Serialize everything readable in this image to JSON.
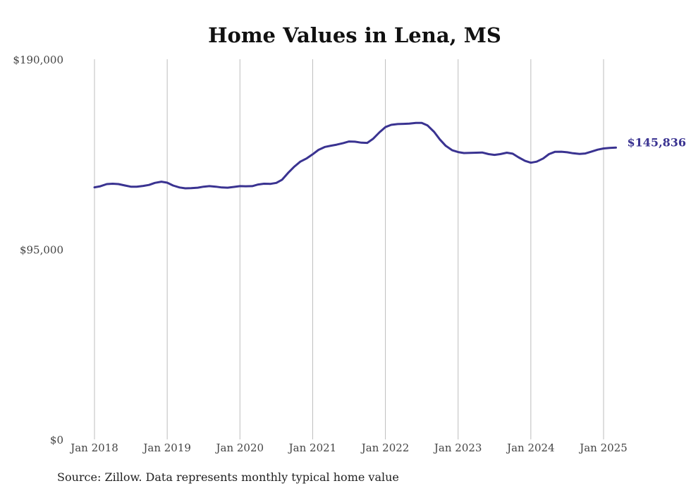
{
  "chart_data": {
    "type": "line",
    "title": "Home Values in Lena, MS",
    "xlabel": "",
    "ylabel": "",
    "ylim": [
      0,
      190000
    ],
    "y_ticks": [
      {
        "value": 0,
        "label": "$0"
      },
      {
        "value": 95000,
        "label": "$95,000"
      },
      {
        "value": 190000,
        "label": "$190,000"
      }
    ],
    "x_ticks": [
      {
        "value": 2018.0,
        "label": "Jan 2018"
      },
      {
        "value": 2019.0,
        "label": "Jan 2019"
      },
      {
        "value": 2020.0,
        "label": "Jan 2020"
      },
      {
        "value": 2021.0,
        "label": "Jan 2021"
      },
      {
        "value": 2022.0,
        "label": "Jan 2022"
      },
      {
        "value": 2023.0,
        "label": "Jan 2023"
      },
      {
        "value": 2024.0,
        "label": "Jan 2024"
      },
      {
        "value": 2025.0,
        "label": "Jan 2025"
      }
    ],
    "grid": {
      "vertical": true,
      "horizontal": false
    },
    "series": [
      {
        "color": "#3a3391",
        "end_label": "$145,836",
        "points": [
          [
            2018.0,
            126000
          ],
          [
            2018.08,
            126500
          ],
          [
            2018.17,
            127600
          ],
          [
            2018.25,
            127800
          ],
          [
            2018.33,
            127600
          ],
          [
            2018.42,
            126900
          ],
          [
            2018.5,
            126300
          ],
          [
            2018.58,
            126300
          ],
          [
            2018.67,
            126700
          ],
          [
            2018.75,
            127200
          ],
          [
            2018.83,
            128200
          ],
          [
            2018.92,
            128800
          ],
          [
            2019.0,
            128300
          ],
          [
            2019.08,
            126900
          ],
          [
            2019.17,
            125900
          ],
          [
            2019.25,
            125500
          ],
          [
            2019.33,
            125600
          ],
          [
            2019.42,
            125800
          ],
          [
            2019.5,
            126300
          ],
          [
            2019.58,
            126600
          ],
          [
            2019.67,
            126300
          ],
          [
            2019.75,
            125900
          ],
          [
            2019.83,
            125800
          ],
          [
            2019.92,
            126200
          ],
          [
            2020.0,
            126600
          ],
          [
            2020.08,
            126500
          ],
          [
            2020.17,
            126600
          ],
          [
            2020.25,
            127400
          ],
          [
            2020.33,
            127800
          ],
          [
            2020.42,
            127700
          ],
          [
            2020.5,
            128200
          ],
          [
            2020.58,
            129800
          ],
          [
            2020.67,
            133500
          ],
          [
            2020.75,
            136400
          ],
          [
            2020.83,
            138800
          ],
          [
            2020.92,
            140500
          ],
          [
            2021.0,
            142500
          ],
          [
            2021.08,
            144700
          ],
          [
            2021.17,
            146200
          ],
          [
            2021.25,
            146800
          ],
          [
            2021.33,
            147300
          ],
          [
            2021.42,
            148100
          ],
          [
            2021.5,
            148900
          ],
          [
            2021.58,
            148800
          ],
          [
            2021.67,
            148300
          ],
          [
            2021.75,
            148200
          ],
          [
            2021.83,
            150200
          ],
          [
            2021.92,
            153500
          ],
          [
            2022.0,
            156100
          ],
          [
            2022.08,
            157200
          ],
          [
            2022.17,
            157600
          ],
          [
            2022.25,
            157700
          ],
          [
            2022.33,
            157800
          ],
          [
            2022.42,
            158200
          ],
          [
            2022.5,
            158200
          ],
          [
            2022.58,
            156900
          ],
          [
            2022.67,
            153700
          ],
          [
            2022.75,
            149900
          ],
          [
            2022.83,
            146700
          ],
          [
            2022.92,
            144500
          ],
          [
            2023.0,
            143600
          ],
          [
            2023.08,
            143100
          ],
          [
            2023.17,
            143200
          ],
          [
            2023.25,
            143300
          ],
          [
            2023.33,
            143400
          ],
          [
            2023.42,
            142600
          ],
          [
            2023.5,
            142200
          ],
          [
            2023.58,
            142600
          ],
          [
            2023.67,
            143300
          ],
          [
            2023.75,
            142800
          ],
          [
            2023.83,
            141000
          ],
          [
            2023.92,
            139200
          ],
          [
            2024.0,
            138300
          ],
          [
            2024.08,
            138800
          ],
          [
            2024.17,
            140400
          ],
          [
            2024.25,
            142600
          ],
          [
            2024.33,
            143700
          ],
          [
            2024.42,
            143800
          ],
          [
            2024.5,
            143500
          ],
          [
            2024.58,
            143000
          ],
          [
            2024.67,
            142700
          ],
          [
            2024.75,
            142900
          ],
          [
            2024.83,
            143800
          ],
          [
            2024.92,
            144800
          ],
          [
            2025.0,
            145400
          ],
          [
            2025.08,
            145700
          ],
          [
            2025.17,
            145836
          ]
        ]
      }
    ]
  },
  "source_note": "Source: Zillow. Data represents monthly typical home value"
}
